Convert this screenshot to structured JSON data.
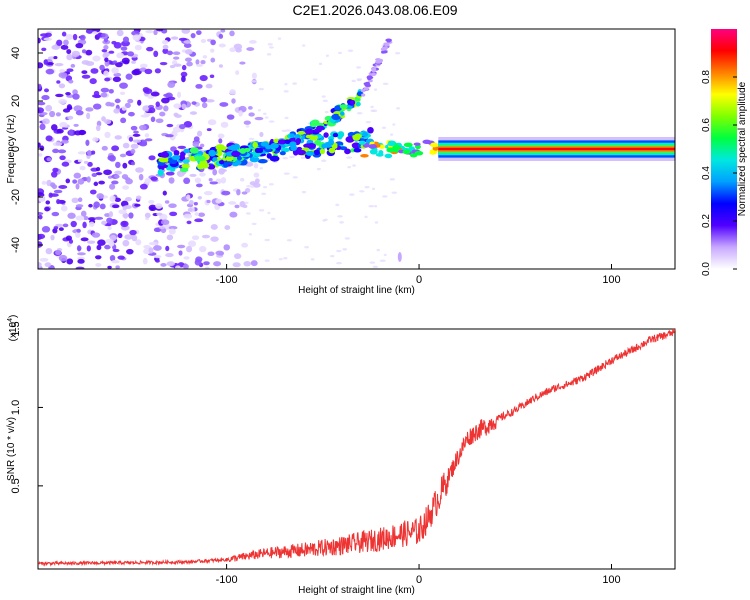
{
  "title": "C2E1.2026.043.08.06.E09",
  "chart_data": [
    {
      "type": "heatmap",
      "name": "spectrogram",
      "xlabel": "Height of straight line (km)",
      "ylabel": "Frequency (Hz)",
      "xlim": [
        -198,
        133
      ],
      "ylim": [
        -50,
        50
      ],
      "xticks": [
        -100,
        0,
        100
      ],
      "yticks": [
        -40,
        -20,
        0,
        20,
        40
      ],
      "colorbar": {
        "label": "Normalized spectral amplitude",
        "range": [
          0,
          1
        ],
        "ticks": [
          "0.0",
          "0.2",
          "0.4",
          "0.6",
          "0.8"
        ],
        "colors": [
          "#ffffff",
          "#c8a8ff",
          "#5000ff",
          "#0000ff",
          "#00a0ff",
          "#00e8e0",
          "#00ff40",
          "#80ff00",
          "#ffff00",
          "#ff8000",
          "#ff0000",
          "#ff0080"
        ]
      },
      "features": [
        {
          "label": "carrier line",
          "x_from": -20,
          "x_to": 133,
          "frequency": 0,
          "amplitude": 1.0
        },
        {
          "label": "lower branch",
          "x_from": -135,
          "x_to": -25,
          "frequency_from": -10,
          "frequency_to": 8,
          "amplitude": 0.4
        },
        {
          "label": "upper branch",
          "x_from": -130,
          "x_to": -15,
          "frequency_from": -3,
          "frequency_to": 46,
          "amplitude": 0.3
        },
        {
          "label": "noise region",
          "x_from": -198,
          "x_to": -80,
          "amplitude": 0.15
        }
      ]
    },
    {
      "type": "line",
      "name": "snr",
      "xlabel": "Height of straight line (km)",
      "ylabel": "SNR (10 * v/v)",
      "scale_label": "(x10",
      "scale_exp": "4",
      "scale_close": ")",
      "xlim": [
        -198,
        133
      ],
      "ylim": [
        -0.03,
        1.5
      ],
      "xticks": [
        -100,
        0,
        100
      ],
      "yticks": [
        0.5,
        1.0,
        1.5
      ],
      "ytick_labels": [
        "0.5",
        "1.0",
        "1.5"
      ],
      "color": "#ee3333",
      "series": [
        {
          "name": "SNR",
          "x": [
            -198,
            -150,
            -120,
            -100,
            -80,
            -60,
            -40,
            -20,
            -10,
            0,
            5,
            10,
            15,
            20,
            25,
            30,
            35,
            40,
            50,
            60,
            70,
            80,
            90,
            100,
            110,
            120,
            133
          ],
          "values": [
            0.005,
            0.01,
            0.015,
            0.03,
            0.07,
            0.09,
            0.12,
            0.16,
            0.19,
            0.21,
            0.3,
            0.42,
            0.55,
            0.68,
            0.8,
            0.85,
            0.88,
            0.92,
            0.98,
            1.06,
            1.12,
            1.16,
            1.22,
            1.3,
            1.36,
            1.43,
            1.48
          ]
        }
      ]
    }
  ]
}
